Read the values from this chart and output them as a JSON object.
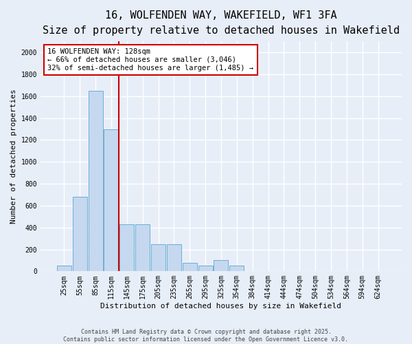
{
  "title_line1": "16, WOLFENDEN WAY, WAKEFIELD, WF1 3FA",
  "title_line2": "Size of property relative to detached houses in Wakefield",
  "xlabel": "Distribution of detached houses by size in Wakefield",
  "ylabel": "Number of detached properties",
  "categories": [
    "25sqm",
    "55sqm",
    "85sqm",
    "115sqm",
    "145sqm",
    "175sqm",
    "205sqm",
    "235sqm",
    "265sqm",
    "295sqm",
    "325sqm",
    "354sqm",
    "384sqm",
    "414sqm",
    "444sqm",
    "474sqm",
    "504sqm",
    "534sqm",
    "564sqm",
    "594sqm",
    "624sqm"
  ],
  "values": [
    55,
    680,
    1650,
    1300,
    430,
    430,
    250,
    250,
    80,
    55,
    100,
    55,
    0,
    0,
    0,
    0,
    0,
    0,
    0,
    0,
    0
  ],
  "bar_color": "#c5d8ef",
  "bar_edgecolor": "#6aaed6",
  "bg_color": "#e8eef8",
  "grid_color": "#ffffff",
  "vline_color": "#cc0000",
  "vline_x_index": 3.5,
  "annotation_text": "16 WOLFENDEN WAY: 128sqm\n← 66% of detached houses are smaller (3,046)\n32% of semi-detached houses are larger (1,485) →",
  "annotation_box_color": "#cc0000",
  "ylim": [
    0,
    2100
  ],
  "yticks": [
    0,
    200,
    400,
    600,
    800,
    1000,
    1200,
    1400,
    1600,
    1800,
    2000
  ],
  "footnote": "Contains HM Land Registry data © Crown copyright and database right 2025.\nContains public sector information licensed under the Open Government Licence v3.0.",
  "title_fontsize": 11,
  "subtitle_fontsize": 9,
  "axis_label_fontsize": 8,
  "tick_fontsize": 7,
  "annotation_fontsize": 7.5
}
